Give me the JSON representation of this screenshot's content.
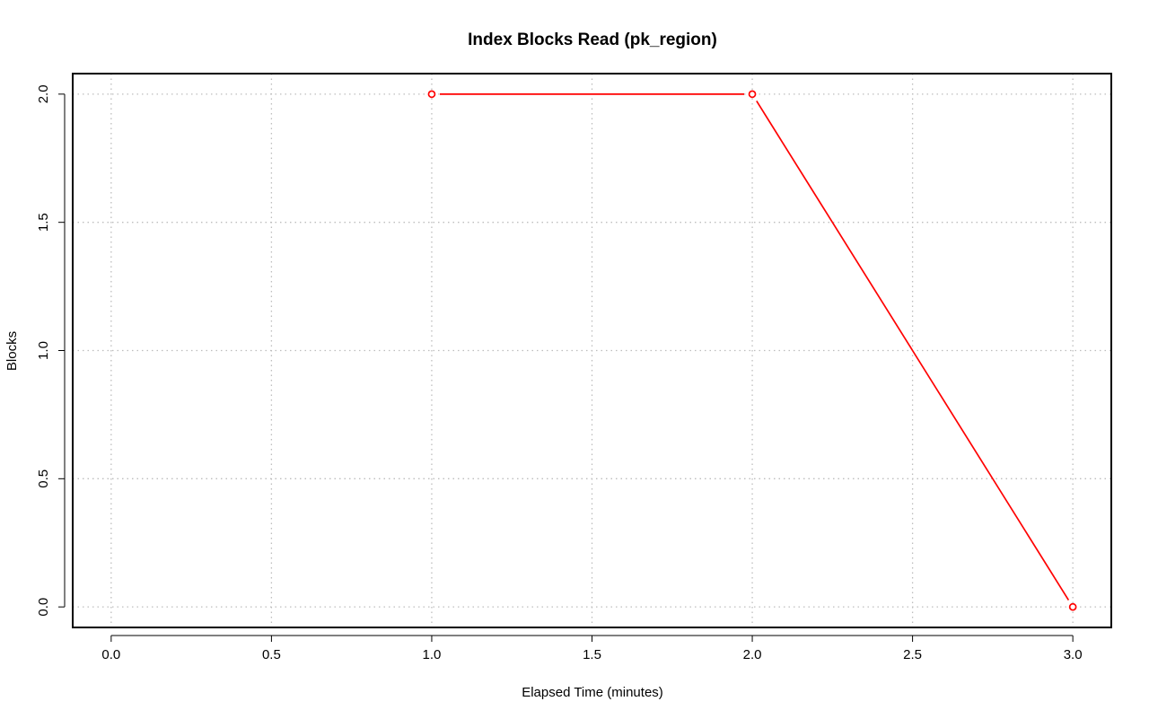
{
  "chart_data": {
    "type": "line",
    "title": "Index Blocks Read (pk_region)",
    "xlabel": "Elapsed Time (minutes)",
    "ylabel": "Blocks",
    "xlim": [
      -0.12,
      3.12
    ],
    "ylim": [
      -0.08,
      2.08
    ],
    "x_ticks": [
      0.0,
      0.5,
      1.0,
      1.5,
      2.0,
      2.5,
      3.0
    ],
    "x_tick_labels": [
      "0.0",
      "0.5",
      "1.0",
      "1.5",
      "2.0",
      "2.5",
      "3.0"
    ],
    "y_ticks": [
      0.0,
      0.5,
      1.0,
      1.5,
      2.0
    ],
    "y_tick_labels": [
      "0.0",
      "0.5",
      "1.0",
      "1.5",
      "2.0"
    ],
    "grid": true,
    "series": [
      {
        "x": [
          1.0,
          2.0,
          3.0
        ],
        "values": [
          2.0,
          2.0,
          0.0
        ],
        "color": "#ff0000",
        "marker": "open-circle"
      }
    ]
  }
}
